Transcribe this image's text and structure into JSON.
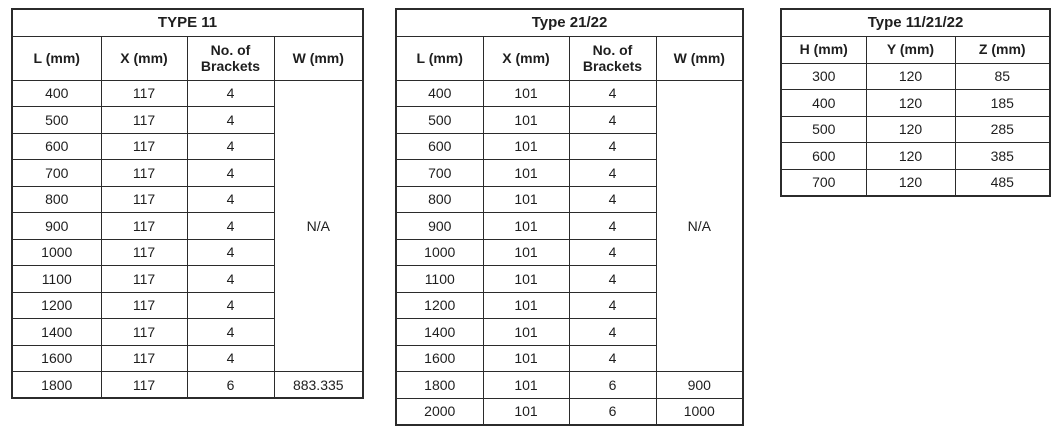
{
  "page": {
    "background": "#ffffff",
    "text_color": "#1e1e1e",
    "border_color": "#2b2b2b"
  },
  "tables": [
    {
      "title": "TYPE 11",
      "headers": [
        "L (mm)",
        "X (mm)",
        "No. of Brackets",
        "W (mm)"
      ],
      "rows": [
        [
          "400",
          "117",
          "4",
          {
            "text": "N/A",
            "rowspan": 11
          }
        ],
        [
          "500",
          "117",
          "4"
        ],
        [
          "600",
          "117",
          "4"
        ],
        [
          "700",
          "117",
          "4"
        ],
        [
          "800",
          "117",
          "4"
        ],
        [
          "900",
          "117",
          "4"
        ],
        [
          "1000",
          "117",
          "4"
        ],
        [
          "1100",
          "117",
          "4"
        ],
        [
          "1200",
          "117",
          "4"
        ],
        [
          "1400",
          "117",
          "4"
        ],
        [
          "1600",
          "117",
          "4"
        ],
        [
          "1800",
          "117",
          "6",
          "883.335"
        ]
      ]
    },
    {
      "title": "Type 21/22",
      "headers": [
        "L (mm)",
        "X (mm)",
        "No. of Brackets",
        "W (mm)"
      ],
      "rows": [
        [
          "400",
          "101",
          "4",
          {
            "text": "N/A",
            "rowspan": 11
          }
        ],
        [
          "500",
          "101",
          "4"
        ],
        [
          "600",
          "101",
          "4"
        ],
        [
          "700",
          "101",
          "4"
        ],
        [
          "800",
          "101",
          "4"
        ],
        [
          "900",
          "101",
          "4"
        ],
        [
          "1000",
          "101",
          "4"
        ],
        [
          "1100",
          "101",
          "4"
        ],
        [
          "1200",
          "101",
          "4"
        ],
        [
          "1400",
          "101",
          "4"
        ],
        [
          "1600",
          "101",
          "4"
        ],
        [
          "1800",
          "101",
          "6",
          "900"
        ],
        [
          "2000",
          "101",
          "6",
          "1000"
        ]
      ]
    },
    {
      "title": "Type 11/21/22",
      "headers": [
        "H (mm)",
        "Y (mm)",
        "Z (mm)"
      ],
      "rows": [
        [
          "300",
          "120",
          "85"
        ],
        [
          "400",
          "120",
          "185"
        ],
        [
          "500",
          "120",
          "285"
        ],
        [
          "600",
          "120",
          "385"
        ],
        [
          "700",
          "120",
          "485"
        ]
      ]
    }
  ]
}
